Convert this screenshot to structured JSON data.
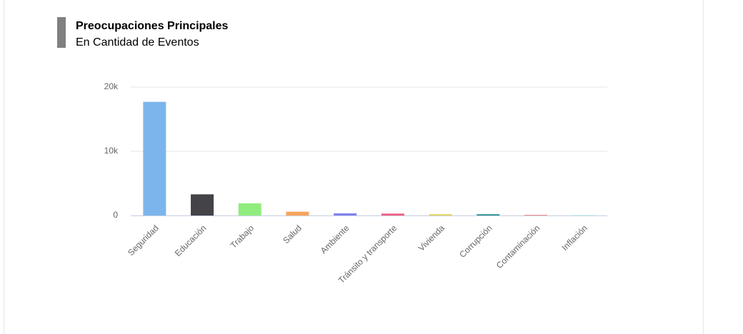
{
  "chart_data": {
    "type": "bar",
    "title": "Preocupaciones Principales",
    "subtitle": "En Cantidad de Eventos",
    "categories": [
      "Seguridad",
      "Educación",
      "Trabajo",
      "Salud",
      "Ambiente",
      "Tránsito y transporte",
      "Vivienda",
      "Corrupción",
      "Contaminación",
      "Inflación"
    ],
    "values": [
      17700,
      3300,
      1900,
      600,
      350,
      300,
      200,
      200,
      80,
      50
    ],
    "colors": [
      "#7cb5ec",
      "#434348",
      "#90ed7d",
      "#f7a35c",
      "#8085e9",
      "#f15c80",
      "#e4d354",
      "#2b908f",
      "#f45b5b",
      "#91e8e1"
    ],
    "ylim": [
      0,
      20000
    ],
    "yticks": [
      0,
      {
        "value": 10000,
        "label": "10k"
      },
      {
        "value": 20000,
        "label": "20k"
      }
    ],
    "grid": true
  }
}
